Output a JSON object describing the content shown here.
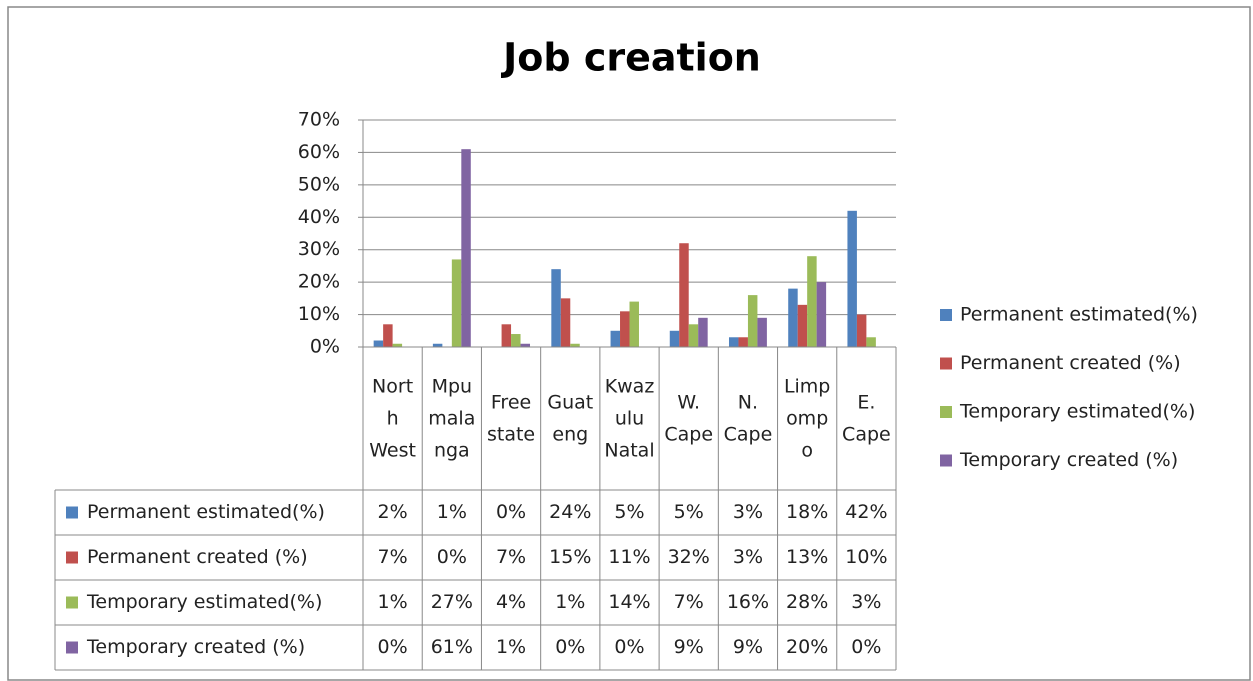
{
  "chart_data": {
    "type": "bar",
    "title": "Job creation",
    "categories": [
      "North West",
      "Mpumalanga",
      "Free state",
      "Guateng",
      "Kwazulu Natal",
      "W. Cape",
      "N. Cape",
      "Limpompo",
      "E. Cape"
    ],
    "series": [
      {
        "name": "Permanent estimated(%)",
        "color": "#4f81bd",
        "values": [
          2,
          1,
          0,
          24,
          5,
          5,
          3,
          18,
          42
        ],
        "value_labels": [
          "2%",
          "1%",
          "0%",
          "24%",
          "5%",
          "5%",
          "3%",
          "18%",
          "42%"
        ]
      },
      {
        "name": "Permanent created (%)",
        "color": "#c0504d",
        "values": [
          7,
          0,
          7,
          15,
          11,
          32,
          3,
          13,
          10
        ],
        "value_labels": [
          "7%",
          "0%",
          "7%",
          "15%",
          "11%",
          "32%",
          "3%",
          "13%",
          "10%"
        ]
      },
      {
        "name": "Temporary estimated(%)",
        "color": "#9bbb59",
        "values": [
          1,
          27,
          4,
          1,
          14,
          7,
          16,
          28,
          3
        ],
        "value_labels": [
          "1%",
          "27%",
          "4%",
          "1%",
          "14%",
          "7%",
          "16%",
          "28%",
          "3%"
        ]
      },
      {
        "name": "Temporary created (%)",
        "color": "#8064a2",
        "values": [
          0,
          61,
          1,
          0,
          0,
          9,
          9,
          20,
          0
        ],
        "value_labels": [
          "0%",
          "61%",
          "1%",
          "0%",
          "0%",
          "9%",
          "9%",
          "20%",
          "0%"
        ]
      }
    ],
    "ylim": [
      0,
      70
    ],
    "yticks": [
      {
        "value": 0,
        "label": "0%"
      },
      {
        "value": 10,
        "label": "10%"
      },
      {
        "value": 20,
        "label": "20%"
      },
      {
        "value": 30,
        "label": "30%"
      },
      {
        "value": 40,
        "label": "40%"
      },
      {
        "value": 50,
        "label": "50%"
      },
      {
        "value": 60,
        "label": "60%"
      },
      {
        "value": 70,
        "label": "70%"
      }
    ],
    "grid": true,
    "legend": "right"
  }
}
